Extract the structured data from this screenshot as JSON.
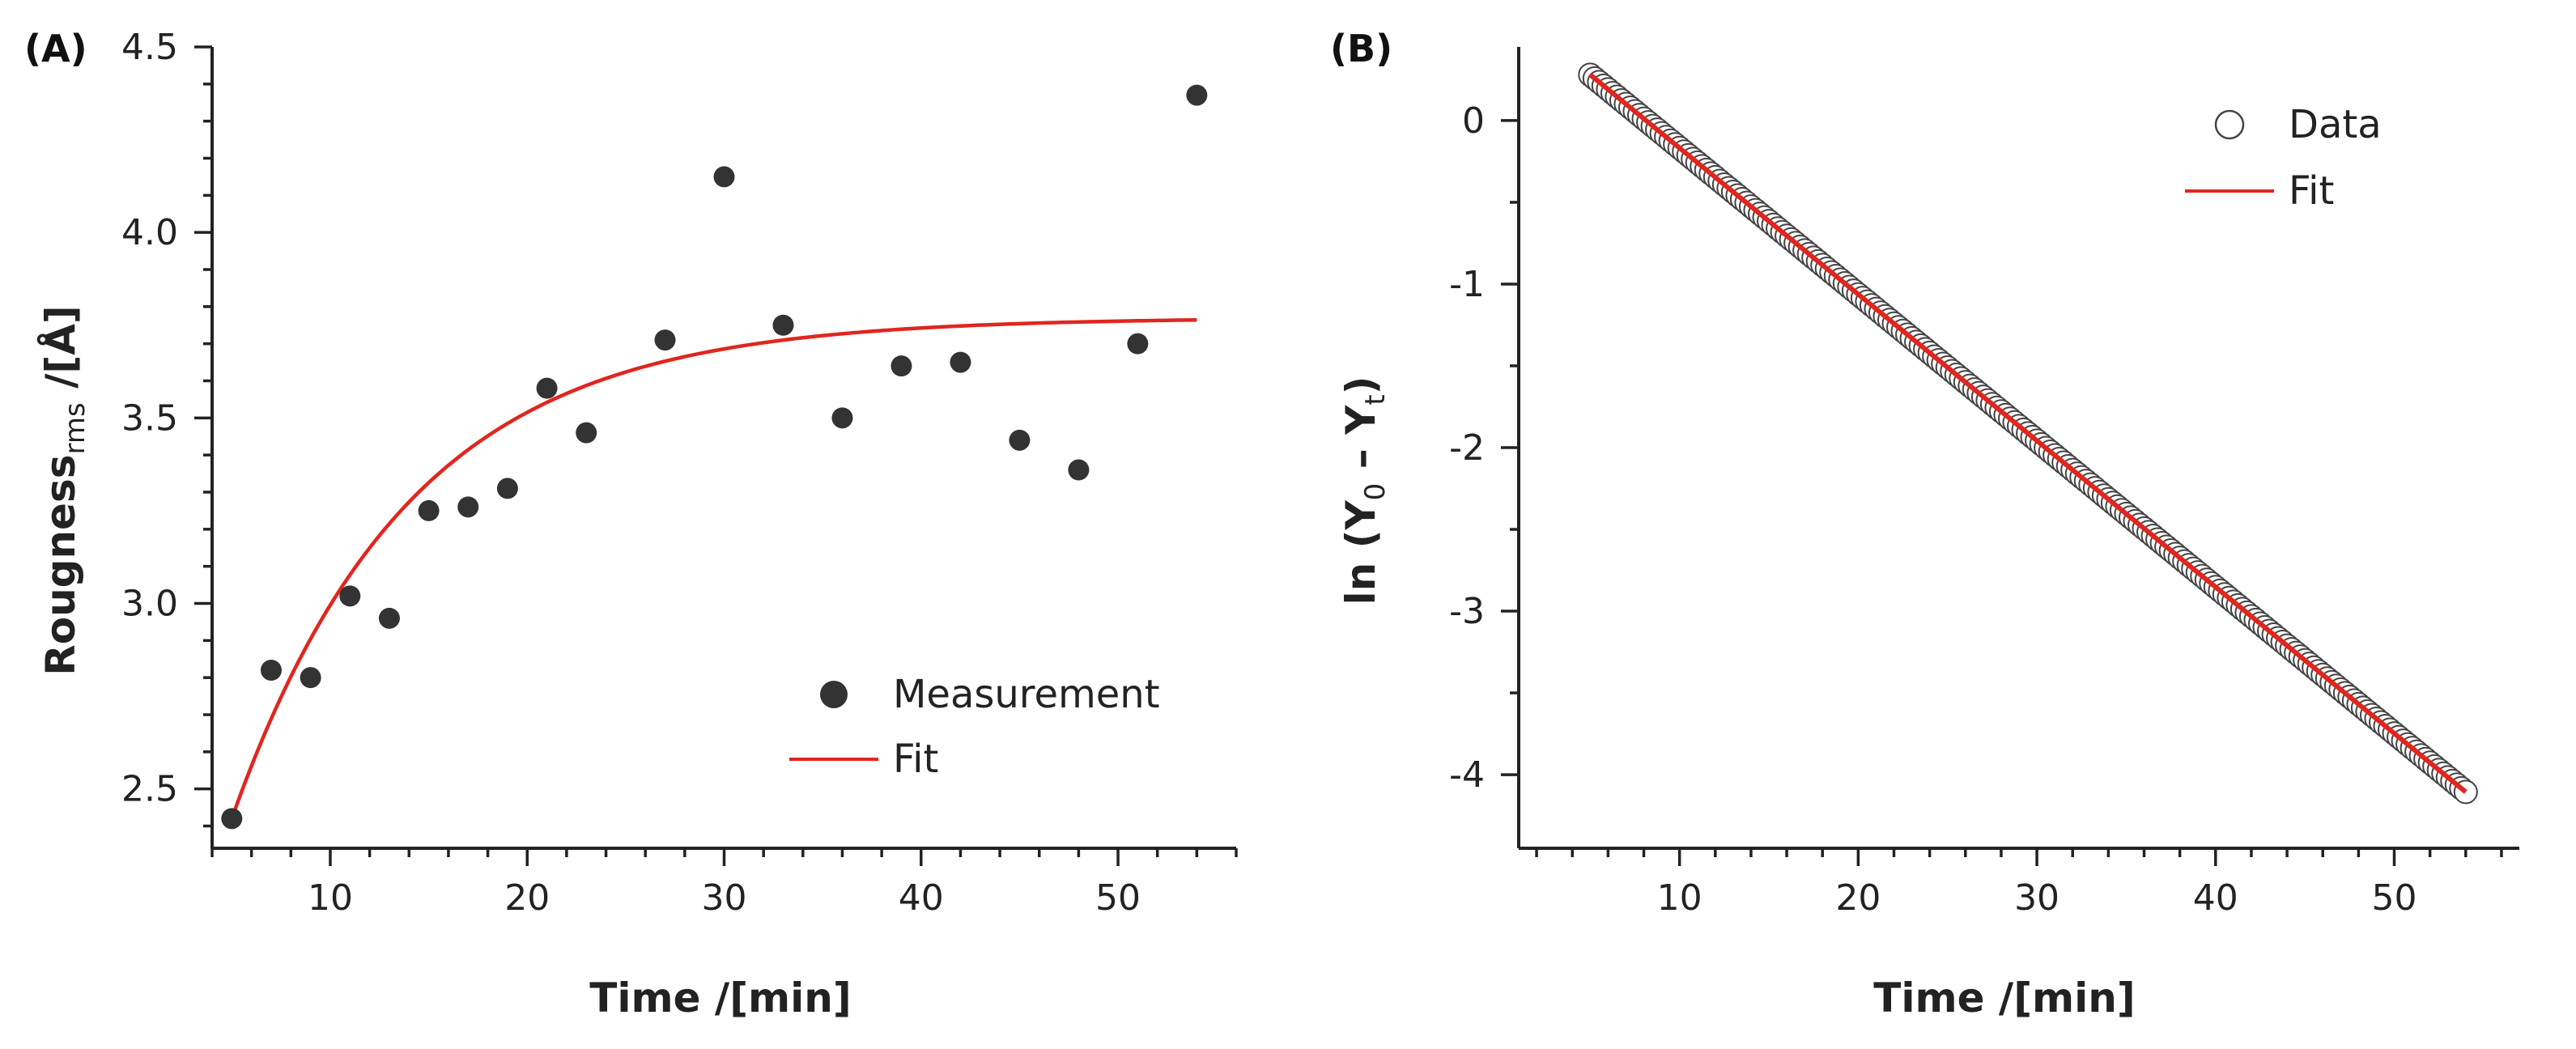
{
  "chart_data": [
    {
      "panel": "(A)",
      "type": "scatter",
      "xlabel": "Time /[min]",
      "ylabel": "Rougness",
      "ylabel_sub": "rms",
      "ylabel_suffix": " /[Å]",
      "xlim": [
        4,
        56
      ],
      "ylim": [
        2.34,
        4.5
      ],
      "xticks": [
        10,
        20,
        30,
        40,
        50
      ],
      "yticks": [
        "2.5",
        "3.0",
        "3.5",
        "4.0",
        "4.5"
      ],
      "legend_position": "lower-right",
      "series": [
        {
          "name": "Measurement",
          "kind": "markers",
          "color": "#333333",
          "x": [
            5,
            7,
            9,
            11,
            13,
            15,
            17,
            19,
            21,
            23,
            27,
            30,
            33,
            36,
            39,
            42,
            45,
            48,
            51,
            54
          ],
          "y": [
            2.42,
            2.82,
            2.8,
            3.02,
            2.96,
            3.25,
            3.26,
            3.31,
            3.58,
            3.46,
            3.71,
            4.15,
            3.75,
            3.5,
            3.64,
            3.65,
            3.44,
            3.36,
            3.7,
            4.37
          ]
        },
        {
          "name": "Fit",
          "kind": "line",
          "color": "#e0261f",
          "model": "y = 3.77 - 1.35*exp(-(x-5)/9)",
          "x_range": [
            5,
            54
          ]
        }
      ]
    },
    {
      "panel": "(B)",
      "type": "scatter",
      "xlabel": "Time /[min]",
      "ylabel": "ln (Y",
      "ylabel_sub1": "0",
      "ylabel_mid": " – Y",
      "ylabel_sub2": "t",
      "ylabel_end": ")",
      "xlim": [
        1,
        57
      ],
      "ylim": [
        -4.45,
        0.45
      ],
      "xticks": [
        10,
        20,
        30,
        40,
        50
      ],
      "yticks": [
        "0",
        "-1",
        "-2",
        "-3",
        "-4"
      ],
      "legend_position": "top-right",
      "series": [
        {
          "name": "Data",
          "kind": "open-markers",
          "color": "#444444",
          "x_start": 5,
          "x_end": 54,
          "x_step": 0.25,
          "model": "y = 0.28 - 0.0895*(x-5)"
        },
        {
          "name": "Fit",
          "kind": "line",
          "color": "#e0261f",
          "model": "y = 0.28 - 0.0895*(x-5)",
          "x_range": [
            5,
            54
          ]
        }
      ]
    }
  ]
}
